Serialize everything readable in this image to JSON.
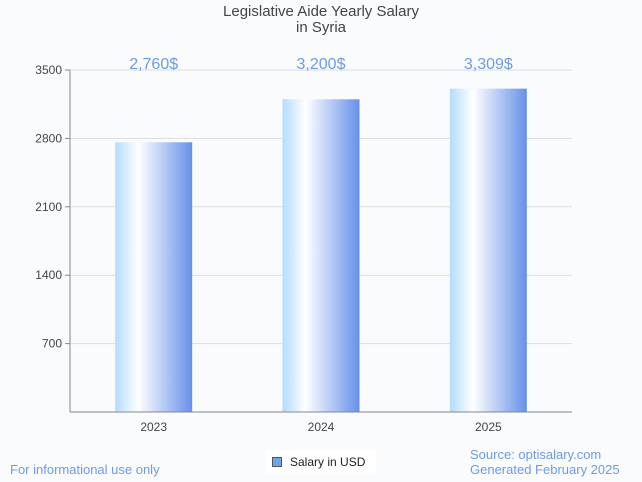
{
  "chart_data": {
    "type": "bar",
    "title": "Legislative Aide Yearly Salary",
    "subtitle": "in Syria",
    "categories": [
      "2023",
      "2024",
      "2025"
    ],
    "values": [
      2760,
      3200,
      3309
    ],
    "data_labels": [
      "2,760$",
      "3,200$",
      "3,309$"
    ],
    "yticks": [
      700,
      1400,
      2100,
      2800,
      3500
    ],
    "ylim": [
      0,
      3500
    ],
    "xlabel": "",
    "ylabel": "",
    "grid": true,
    "legend": {
      "label": "Salary in USD",
      "placement": "bottom-center",
      "color": "#6aa6ea"
    },
    "colors": {
      "bar_light": "#b3dcff",
      "bar_mid": "#ffffff",
      "bar_dark": "#6690e8",
      "label": "#6f9ae8"
    }
  },
  "footer": {
    "left": "For informational use only",
    "source": "Source: optisalary.com",
    "generated": "Generated February 2025"
  }
}
